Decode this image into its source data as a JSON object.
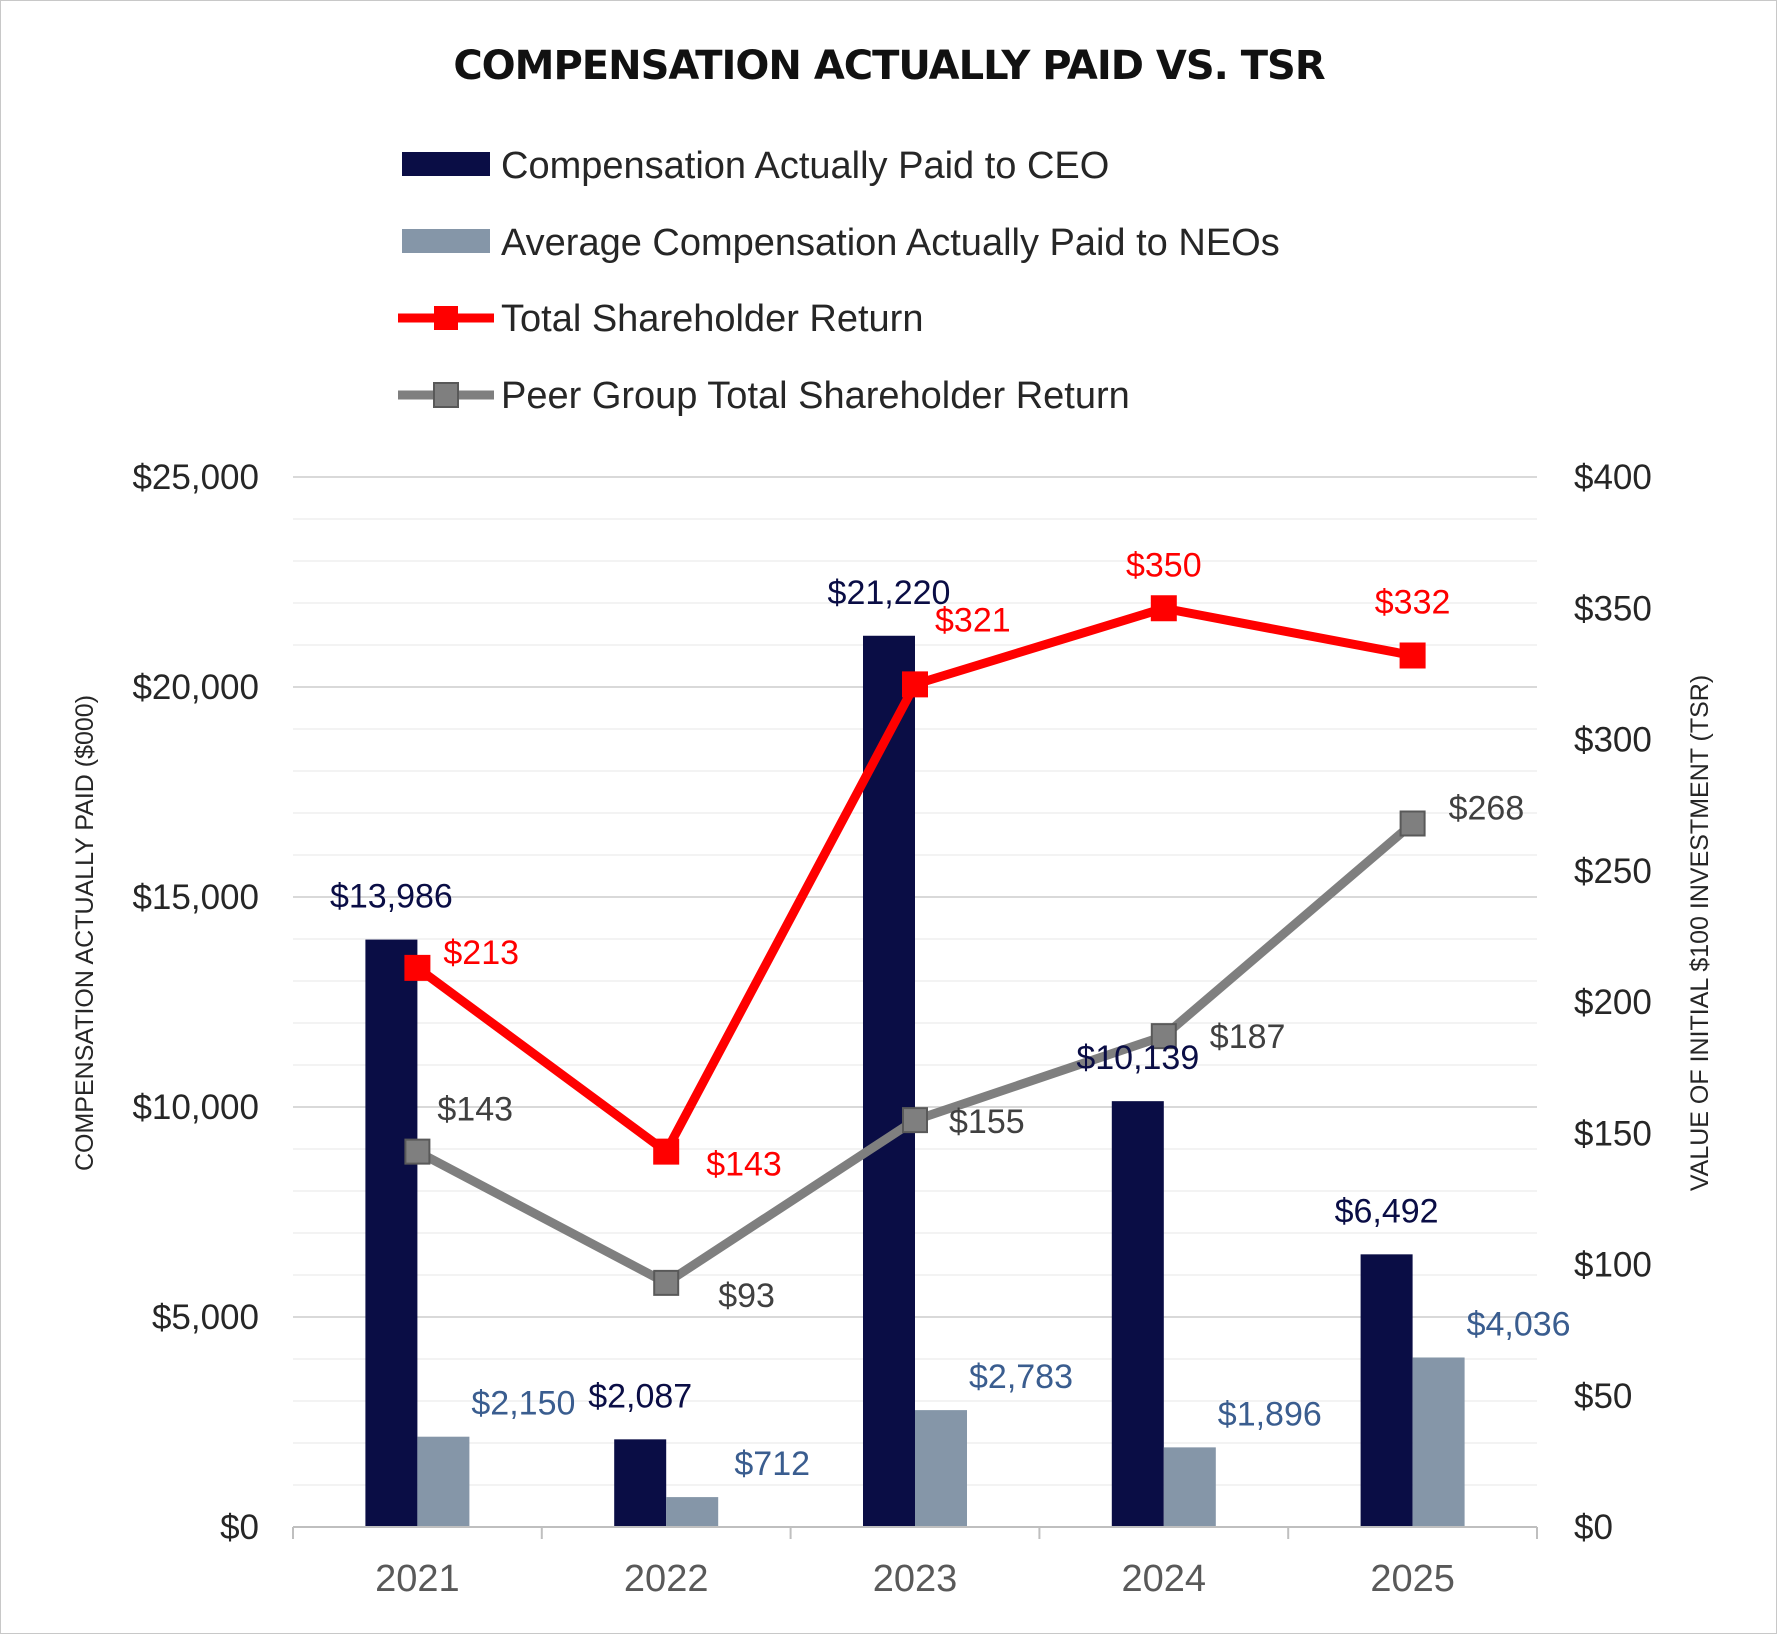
{
  "chart_data": {
    "type": "bar",
    "title": "COMPENSATION ACTUALLY PAID VS. TSR",
    "categories": [
      "2021",
      "2022",
      "2023",
      "2024",
      "2025"
    ],
    "ylabel": "COMPENSATION ACTUALLY PAID ($000)",
    "y2label": "VALUE OF INITIAL $100 INVESTMENT (TSR)",
    "ylim": [
      0,
      25000
    ],
    "y2lim": [
      0,
      400
    ],
    "y_ticks": [
      "$0",
      "$5,000",
      "$10,000",
      "$15,000",
      "$20,000",
      "$25,000"
    ],
    "y2_ticks": [
      "$0",
      "$50",
      "$100",
      "$150",
      "$200",
      "$250",
      "$300",
      "$350",
      "$400"
    ],
    "legend_position": "top",
    "grid": true,
    "series": [
      {
        "name": "Compensation Actually Paid to CEO",
        "type": "bar",
        "axis": "left",
        "color": "#0a0d45",
        "values": [
          13986,
          2087,
          21220,
          10139,
          6492
        ],
        "labels": [
          "$13,986",
          "$2,087",
          "$21,220",
          "$10,139",
          "$6,492"
        ],
        "label_color": "#0a0d45"
      },
      {
        "name": "Average Compensation Actually Paid to NEOs",
        "type": "bar",
        "axis": "left",
        "color": "#8596a8",
        "values": [
          2150,
          712,
          2783,
          1896,
          4036
        ],
        "labels": [
          "$2,150",
          "$712",
          "$2,783",
          "$1,896",
          "$4,036"
        ],
        "label_color": "#3a5d8f"
      },
      {
        "name": "Total Shareholder Return",
        "type": "line",
        "axis": "right",
        "color": "#ff0000",
        "values": [
          213,
          143,
          321,
          350,
          332
        ],
        "labels": [
          "$213",
          "$143",
          "$321",
          "$350",
          "$332"
        ],
        "label_color": "#ff0000"
      },
      {
        "name": "Peer Group Total Shareholder Return",
        "type": "line",
        "axis": "right",
        "color": "#7f7f7f",
        "values": [
          143,
          93,
          155,
          187,
          268
        ],
        "labels": [
          "$143",
          "$93",
          "$155",
          "$187",
          "$268"
        ],
        "label_color": "#404040"
      }
    ]
  }
}
